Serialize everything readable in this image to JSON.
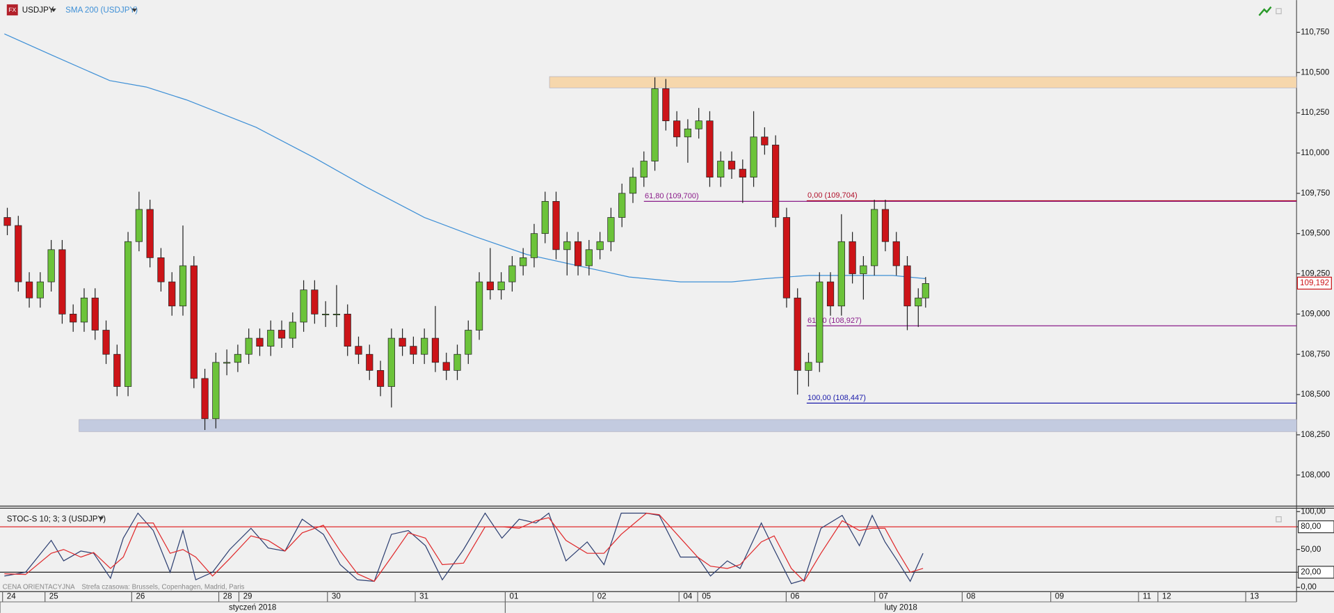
{
  "chart_data": [
    {
      "type": "candlestick",
      "title": "USDJPY",
      "x": [
        2,
        5,
        8,
        11,
        14,
        17,
        20,
        23,
        26,
        29,
        32,
        35,
        38,
        41,
        44,
        47,
        50,
        53,
        56,
        59,
        62,
        65,
        68,
        71,
        74,
        77,
        80,
        83,
        86,
        89,
        92,
        95,
        98,
        101,
        104,
        107,
        110,
        113,
        116,
        119,
        122,
        125,
        128,
        131,
        134,
        137,
        140,
        143,
        146,
        149,
        152,
        155,
        158,
        161,
        164,
        167,
        170,
        173,
        176,
        179,
        182,
        185,
        188,
        191,
        194,
        197,
        200,
        203,
        206,
        209,
        212,
        215,
        218,
        221,
        224,
        227,
        230,
        233,
        236,
        239,
        242,
        245,
        248,
        251,
        253
      ],
      "open": [
        109.6,
        109.55,
        109.2,
        109.1,
        109.2,
        109.4,
        109.0,
        108.95,
        109.1,
        108.9,
        108.75,
        108.55,
        109.45,
        109.65,
        109.35,
        109.2,
        109.05,
        109.3,
        108.6,
        108.35,
        108.7,
        108.7,
        108.75,
        108.85,
        108.8,
        108.9,
        108.85,
        108.95,
        109.15,
        109.0,
        109.0,
        109.0,
        108.8,
        108.75,
        108.65,
        108.55,
        108.85,
        108.8,
        108.75,
        108.85,
        108.7,
        108.65,
        108.75,
        108.9,
        109.2,
        109.15,
        109.2,
        109.3,
        109.35,
        109.5,
        109.7,
        109.4,
        109.45,
        109.3,
        109.4,
        109.45,
        109.6,
        109.75,
        109.85,
        109.95,
        110.4,
        110.2,
        110.1,
        110.15,
        110.2,
        109.85,
        109.95,
        109.9,
        109.85,
        110.1,
        110.05,
        109.6,
        109.1,
        108.65,
        108.7,
        109.2,
        109.05,
        109.45,
        109.25,
        109.3,
        109.65,
        109.45,
        109.3,
        109.05,
        109.1
      ],
      "high": [
        109.66,
        109.61,
        109.26,
        109.26,
        109.46,
        109.46,
        109.06,
        109.16,
        109.16,
        108.96,
        108.81,
        109.51,
        109.76,
        109.71,
        109.41,
        109.26,
        109.55,
        109.36,
        108.66,
        108.76,
        108.78,
        108.81,
        108.91,
        108.91,
        108.96,
        108.96,
        109.01,
        109.21,
        109.21,
        109.08,
        109.18,
        109.06,
        108.86,
        108.81,
        108.71,
        108.91,
        108.91,
        108.86,
        108.91,
        109.05,
        108.76,
        108.81,
        108.96,
        109.26,
        109.41,
        109.26,
        109.36,
        109.41,
        109.56,
        109.76,
        109.76,
        109.51,
        109.51,
        109.46,
        109.51,
        109.66,
        109.81,
        109.91,
        110.01,
        110.47,
        110.46,
        110.26,
        110.21,
        110.28,
        110.26,
        110.01,
        110.01,
        109.96,
        110.26,
        110.16,
        110.11,
        109.66,
        109.16,
        108.76,
        109.26,
        109.26,
        109.62,
        109.51,
        109.36,
        109.71,
        109.71,
        109.51,
        109.36,
        109.16,
        109.23
      ],
      "low": [
        109.49,
        109.14,
        109.04,
        109.04,
        109.14,
        108.94,
        108.89,
        108.89,
        108.84,
        108.69,
        108.49,
        108.49,
        109.39,
        109.29,
        109.14,
        108.99,
        108.99,
        108.54,
        108.28,
        108.29,
        108.62,
        108.64,
        108.69,
        108.74,
        108.74,
        108.79,
        108.79,
        108.89,
        108.94,
        108.92,
        108.92,
        108.74,
        108.69,
        108.59,
        108.49,
        108.42,
        108.74,
        108.69,
        108.69,
        108.64,
        108.59,
        108.59,
        108.69,
        108.84,
        109.09,
        109.09,
        109.14,
        109.24,
        109.29,
        109.44,
        109.34,
        109.24,
        109.24,
        109.24,
        109.34,
        109.39,
        109.54,
        109.69,
        109.79,
        109.89,
        110.14,
        110.04,
        109.94,
        110.09,
        109.79,
        109.79,
        109.84,
        109.69,
        109.79,
        109.99,
        109.54,
        109.04,
        108.5,
        108.55,
        108.64,
        108.99,
        108.99,
        109.19,
        109.09,
        109.24,
        109.39,
        109.24,
        108.9,
        108.92,
        109.04
      ],
      "close": [
        109.55,
        109.2,
        109.1,
        109.2,
        109.4,
        109.0,
        108.95,
        109.1,
        108.9,
        108.75,
        108.55,
        109.45,
        109.65,
        109.35,
        109.2,
        109.05,
        109.3,
        108.6,
        108.35,
        108.7,
        108.7,
        108.75,
        108.85,
        108.8,
        108.9,
        108.85,
        108.95,
        109.15,
        109.0,
        109.0,
        109.0,
        108.8,
        108.75,
        108.65,
        108.55,
        108.85,
        108.8,
        108.75,
        108.85,
        108.7,
        108.65,
        108.75,
        108.9,
        109.2,
        109.15,
        109.2,
        109.3,
        109.35,
        109.5,
        109.7,
        109.4,
        109.45,
        109.3,
        109.4,
        109.45,
        109.6,
        109.75,
        109.85,
        109.95,
        110.4,
        110.2,
        110.1,
        110.15,
        110.2,
        109.85,
        109.95,
        109.9,
        109.85,
        110.1,
        110.05,
        109.6,
        109.1,
        108.65,
        108.7,
        109.2,
        109.05,
        109.45,
        109.25,
        109.3,
        109.65,
        109.45,
        109.3,
        109.05,
        109.1,
        109.19
      ],
      "up_color": "#6cc33a",
      "down_color": "#cc1418",
      "series": [
        {
          "name": "SMA 200 (USDJPY)",
          "color": "#3d8fd6",
          "x": [
            1.2,
            14,
            30,
            40,
            51,
            70,
            86,
            100,
            116,
            130,
            144,
            158,
            172,
            186,
            200,
            209,
            221,
            233,
            244,
            253
          ],
          "values": [
            110.74,
            110.61,
            110.45,
            110.41,
            110.33,
            110.16,
            109.97,
            109.79,
            109.6,
            109.48,
            109.37,
            109.3,
            109.23,
            109.2,
            109.2,
            109.22,
            109.24,
            109.24,
            109.24,
            109.22
          ]
        }
      ],
      "zones": [
        {
          "from": 110.405,
          "to": 110.475,
          "x_start": 150.2,
          "color": "#f6d7ac"
        },
        {
          "from": 108.27,
          "to": 108.345,
          "x_start": 21.6,
          "color": "#c3cbe0"
        }
      ],
      "levels": [
        {
          "value": 109.7,
          "label": "61,80 (109,700)",
          "x_start": 176,
          "color": "#8a1c8a"
        },
        {
          "value": 109.704,
          "label": "0,00 (109,704)",
          "x_start": 220.5,
          "color": "#b0102a"
        },
        {
          "value": 108.927,
          "label": "61,80 (108,927)",
          "x_start": 220.5,
          "color": "#8a1c8a"
        },
        {
          "value": 108.447,
          "label": "100,00 (108,447)",
          "x_start": 220.5,
          "color": "#1a1aaa"
        }
      ],
      "last_price": {
        "value": 109.192,
        "label": "109,192"
      },
      "xlim": [
        0,
        354.4
      ],
      "ylim": [
        107.81,
        110.95
      ],
      "yticks": [
        {
          "value": 108.0,
          "label": "108,000"
        },
        {
          "value": 108.25,
          "label": "108,250"
        },
        {
          "value": 108.5,
          "label": "108,500"
        },
        {
          "value": 108.75,
          "label": "108,750"
        },
        {
          "value": 109.0,
          "label": "109,000"
        },
        {
          "value": 109.25,
          "label": "109,250"
        },
        {
          "value": 109.5,
          "label": "109,500"
        },
        {
          "value": 109.75,
          "label": "109,750"
        },
        {
          "value": 110.0,
          "label": "110,000"
        },
        {
          "value": 110.25,
          "label": "110,250"
        },
        {
          "value": 110.5,
          "label": "110,500"
        },
        {
          "value": 110.75,
          "label": "110,750"
        }
      ]
    },
    {
      "type": "line",
      "title": "STOC-S 10; 3; 3 (USDJPY)",
      "x": [
        1.2,
        7,
        14,
        17.4,
        22.1,
        25.6,
        30.2,
        33.7,
        37.7,
        41.9,
        46.5,
        50,
        53.5,
        58.1,
        62.8,
        68.6,
        73.3,
        77.9,
        82.6,
        88.4,
        93,
        97.7,
        102.3,
        107,
        111.6,
        116.3,
        120.9,
        126.7,
        132.6,
        137.2,
        141.9,
        146.5,
        150,
        154.7,
        160.5,
        165.1,
        169.8,
        176.7,
        180.2,
        186,
        190.7,
        194.2,
        198.8,
        202.3,
        208.1,
        211.6,
        216.3,
        219.8,
        224.4,
        230.2,
        234.9,
        238.4,
        241.9,
        245.3,
        248.8,
        252.3
      ],
      "series": [
        {
          "color": "#2c3e70",
          "values": [
            15,
            20,
            62,
            35,
            48,
            45,
            12,
            65,
            98,
            75,
            20,
            75,
            10,
            20,
            50,
            78,
            52,
            48,
            90,
            70,
            30,
            10,
            8,
            70,
            75,
            55,
            10,
            50,
            98,
            65,
            90,
            85,
            98,
            35,
            60,
            30,
            98,
            98,
            95,
            40,
            40,
            15,
            35,
            25,
            85,
            50,
            5,
            10,
            78,
            95,
            55,
            95,
            60,
            35,
            8,
            45
          ]
        },
        {
          "color": "#e0282a",
          "values": [
            18,
            17,
            45,
            50,
            40,
            46,
            25,
            40,
            85,
            85,
            45,
            50,
            40,
            15,
            38,
            68,
            62,
            48,
            72,
            82,
            48,
            18,
            8,
            40,
            72,
            65,
            30,
            32,
            80,
            80,
            78,
            88,
            92,
            62,
            45,
            45,
            70,
            98,
            96,
            65,
            40,
            28,
            25,
            30,
            60,
            68,
            25,
            8,
            45,
            88,
            75,
            78,
            78,
            48,
            20,
            25
          ]
        }
      ],
      "levels": [
        {
          "value": 80,
          "color": "#e0282a"
        },
        {
          "value": 20,
          "color": "#222222"
        }
      ],
      "footnote": "CENA ORIENTACYJNA",
      "timezone": "Strefa czasowa: Brussels, Copenhagen, Madrid, Paris",
      "xlim": [
        0,
        354.4
      ],
      "ylim": [
        -5.6,
        104.5
      ],
      "yticks": [
        {
          "value": 0,
          "label": "0,00"
        },
        {
          "value": 20,
          "label": "20,00"
        },
        {
          "value": 50,
          "label": "50,00"
        },
        {
          "value": 80,
          "label": "80,00"
        },
        {
          "value": 100,
          "label": "100,00"
        }
      ],
      "xticks": [
        {
          "value": 0.7,
          "label": "24"
        },
        {
          "value": 12.3,
          "label": "25"
        },
        {
          "value": 36.0,
          "label": "26"
        },
        {
          "value": 59.8,
          "label": "28"
        },
        {
          "value": 65.3,
          "label": "29"
        },
        {
          "value": 89.5,
          "label": "30"
        },
        {
          "value": 113.5,
          "label": "31"
        },
        {
          "value": 138.1,
          "label": "01"
        },
        {
          "value": 162.1,
          "label": "02"
        },
        {
          "value": 185.6,
          "label": "04"
        },
        {
          "value": 190.7,
          "label": "05"
        },
        {
          "value": 214.9,
          "label": "06"
        },
        {
          "value": 239.1,
          "label": "07"
        },
        {
          "value": 263.0,
          "label": "08"
        },
        {
          "value": 287.2,
          "label": "09"
        },
        {
          "value": 311.2,
          "label": "11"
        },
        {
          "value": 316.5,
          "label": "12"
        },
        {
          "value": 340.5,
          "label": "13"
        }
      ],
      "months": [
        {
          "value": 0,
          "label": "styczeń 2018"
        },
        {
          "value": 138.1,
          "label": "luty 2018"
        }
      ]
    }
  ]
}
